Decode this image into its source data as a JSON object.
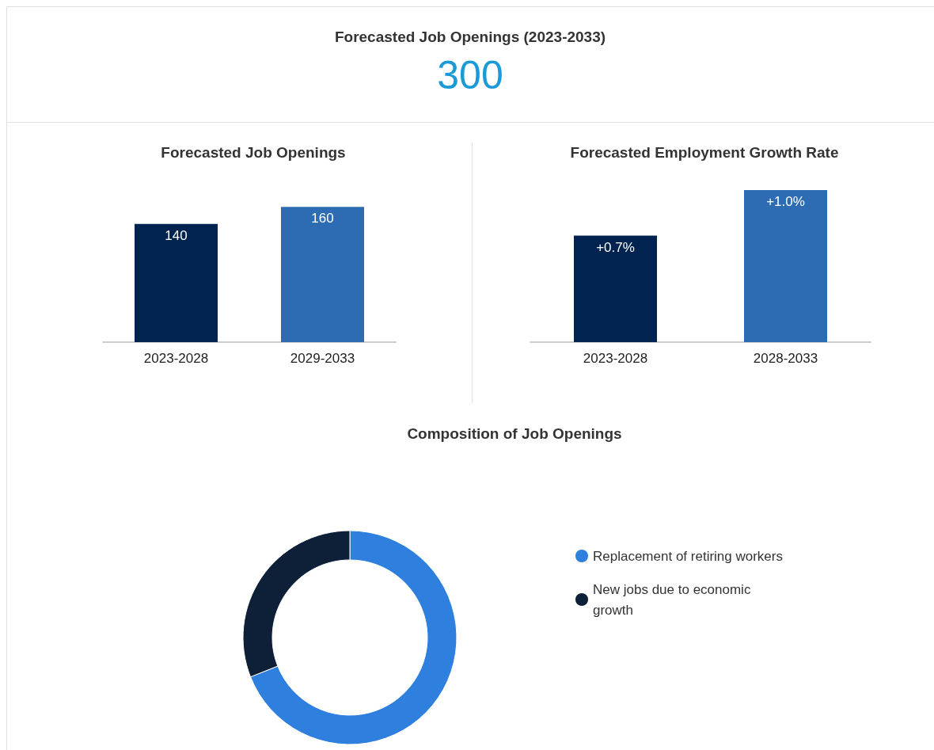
{
  "chart_data": [
    {
      "type": "other",
      "title": "Forecasted Job Openings (2023-2033)",
      "annotations": [
        "300"
      ]
    },
    {
      "type": "bar",
      "title": "Forecasted Job Openings",
      "categories": [
        "2023-2028",
        "2029-2033"
      ],
      "values": [
        140,
        160
      ],
      "colors": [
        "#00234f",
        "#2d6cb3"
      ],
      "data_labels": true
    },
    {
      "type": "bar",
      "title": "Forecasted Employment Growth Rate",
      "categories": [
        "2023-2028",
        "2028-2033"
      ],
      "values": [
        0.7,
        1.0
      ],
      "colors": [
        "#00234f",
        "#2d6cb3"
      ],
      "value_labels": [
        "+0.7%",
        "+1.0%"
      ]
    },
    {
      "type": "donut",
      "title": "Composition of Job Openings",
      "categories": [
        "Replacement of retiring workers",
        "New jobs due to economic growth"
      ],
      "values": [
        69,
        31
      ],
      "colors": [
        "#2f80de",
        "#0d2038"
      ],
      "legend": "right"
    }
  ]
}
